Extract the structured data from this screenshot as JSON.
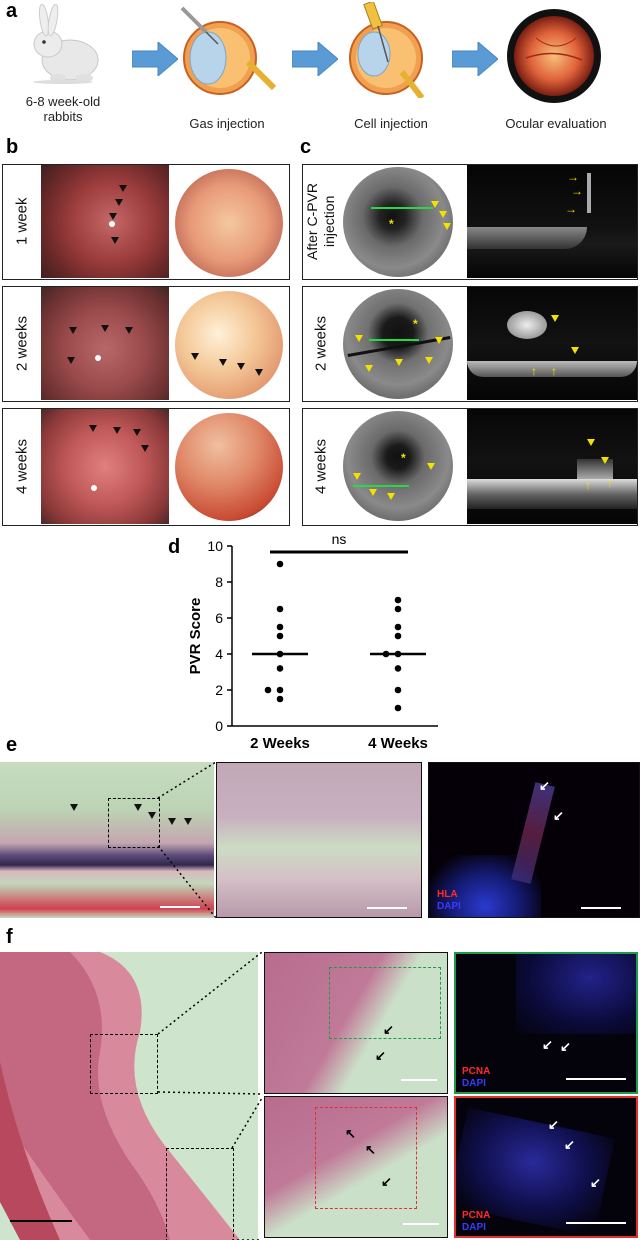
{
  "panels": {
    "a": "a",
    "b": "b",
    "c": "c",
    "d": "d",
    "e": "e",
    "f": "f"
  },
  "panel_a": {
    "steps": [
      {
        "caption": "6-8 week-old rabbits",
        "icon": "rabbit-icon"
      },
      {
        "caption": "Gas injection",
        "icon": "eye-syringe-icon"
      },
      {
        "caption": "Cell injection",
        "icon": "eye-cell-syringe-icon"
      },
      {
        "caption": "Ocular evaluation",
        "icon": "fundus-icon"
      }
    ]
  },
  "panel_b": {
    "rows": [
      "1 week",
      "2 weeks",
      "4 weeks"
    ]
  },
  "panel_c": {
    "rows": [
      "After C-PVR injection",
      "2 weeks",
      "4 weeks"
    ],
    "marker": "*"
  },
  "chart_data": {
    "type": "scatter",
    "categories": [
      "2 Weeks",
      "4 Weeks"
    ],
    "ylabel": "PVR Score",
    "xlabel": "",
    "ylim": [
      0,
      10
    ],
    "yticks": [
      0,
      2,
      4,
      6,
      8,
      10
    ],
    "series": [
      {
        "category": "2 Weeks",
        "values": [
          9,
          6.5,
          5.5,
          5,
          4,
          3.2,
          2,
          2,
          1.5
        ],
        "median": 4
      },
      {
        "category": "4 Weeks",
        "values": [
          7,
          6.5,
          5.5,
          5,
          4,
          4,
          3.2,
          2,
          1
        ],
        "median": 4
      }
    ],
    "significance": "ns",
    "grid": false
  },
  "panel_e": {
    "legend": [
      "HLA",
      "DAPI"
    ],
    "colors": {
      "HLA": "#ff2a2a",
      "DAPI": "#3a3aff"
    }
  },
  "panel_f": {
    "legend": [
      "PCNA",
      "DAPI"
    ],
    "colors": {
      "PCNA": "#ff2a2a",
      "DAPI": "#3a3aff",
      "green_box": "#1f9a4a",
      "red_box": "#e03030"
    }
  }
}
